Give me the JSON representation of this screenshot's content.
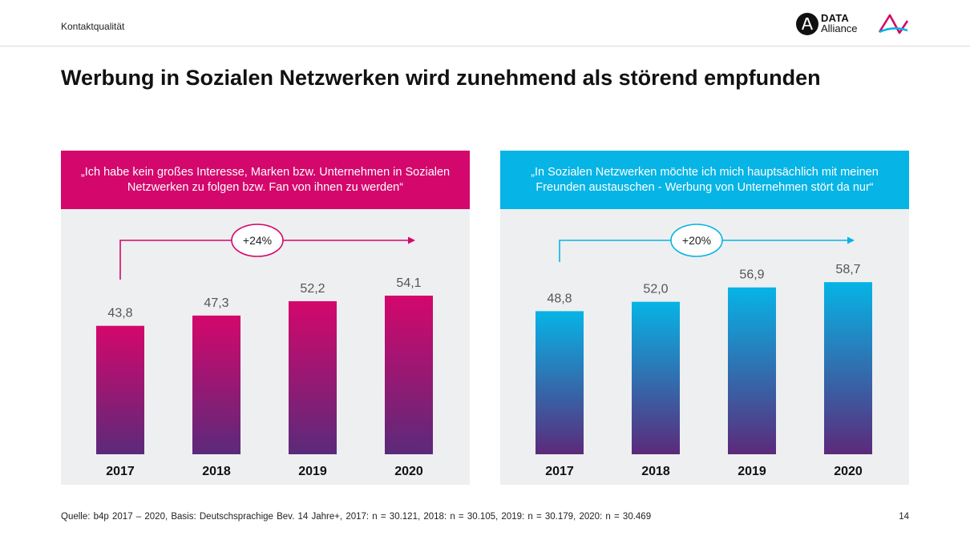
{
  "header": {
    "section_label": "Kontaktqualität",
    "logo_line1": "DATA",
    "logo_line2": "Alliance"
  },
  "title": "Werbung in Sozialen Netzwerken wird zunehmend als störend empfunden",
  "colors": {
    "magenta": "#d4076c",
    "cyan": "#06b4e6",
    "purple_bottom": "#5b2a7a",
    "panel_bg": "#eeeff0"
  },
  "chart_data": [
    {
      "type": "bar",
      "title": "„Ich habe kein großes Interesse, Marken bzw. Unternehmen in Sozialen Netzwerken zu folgen bzw. Fan von ihnen zu werden“",
      "categories": [
        "2017",
        "2018",
        "2019",
        "2020"
      ],
      "values": [
        43.8,
        47.3,
        52.2,
        54.1
      ],
      "value_labels": [
        "43,8",
        "47,3",
        "52,2",
        "54,1"
      ],
      "change_label": "+24%",
      "ylim": [
        0,
        60
      ],
      "grid": false,
      "color": "#d4076c"
    },
    {
      "type": "bar",
      "title": "„In Sozialen Netzwerken möchte ich mich hauptsächlich mit meinen Freunden austauschen - Werbung von Unternehmen stört da nur“",
      "categories": [
        "2017",
        "2018",
        "2019",
        "2020"
      ],
      "values": [
        48.8,
        52.0,
        56.9,
        58.7
      ],
      "value_labels": [
        "48,8",
        "52,0",
        "56,9",
        "58,7"
      ],
      "change_label": "+20%",
      "ylim": [
        0,
        60
      ],
      "grid": false,
      "color": "#06b4e6"
    }
  ],
  "footer": {
    "source": "Quelle: b4p 2017 – 2020, Basis: Deutschsprachige Bev. 14 Jahre+, 2017: n = 30.121, 2018: n = 30.105, 2019: n = 30.179, 2020: n = 30.469",
    "page_number": "14"
  }
}
